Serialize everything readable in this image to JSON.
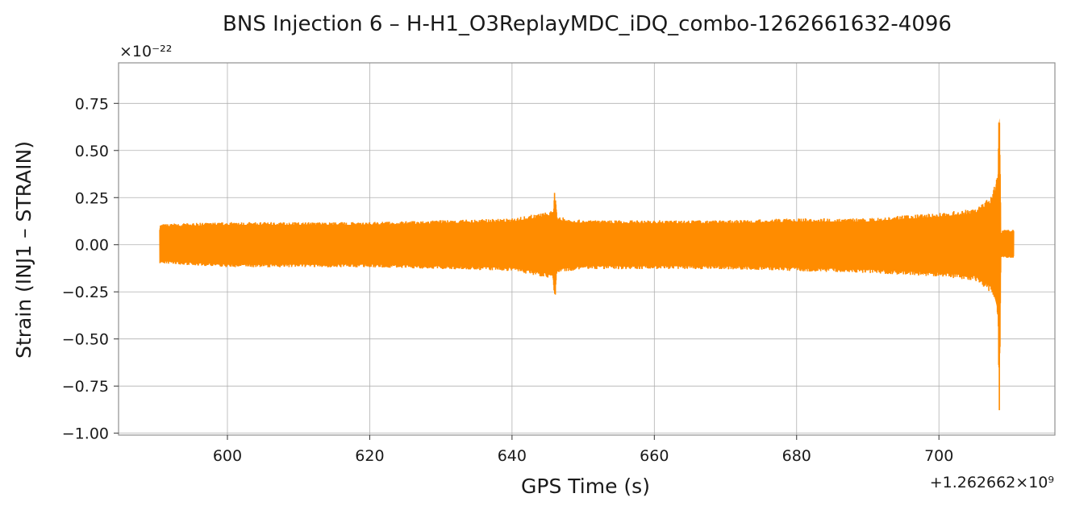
{
  "chart_data": {
    "type": "line",
    "title": "BNS Injection 6 – H-H1_O3ReplayMDC_iDQ_combo-1262661632-4096",
    "xlabel": "GPS Time (s)",
    "ylabel": "Strain (INJ1 – STRAIN)",
    "y_multiplier_text": "×10⁻²²",
    "x_offset_text": "+1.262662×10⁹",
    "x_offset": 1262662000,
    "xlim": [
      584.7,
      716.3
    ],
    "ylim": [
      -1.01,
      0.965
    ],
    "y_unit_scale": 1e-22,
    "xticks": [
      600,
      620,
      640,
      660,
      680,
      700
    ],
    "xtick_labels": [
      "600",
      "620",
      "640",
      "660",
      "680",
      "700"
    ],
    "yticks": [
      -1.0,
      -0.75,
      -0.5,
      -0.25,
      0.0,
      0.25,
      0.5,
      0.75
    ],
    "ytick_labels": [
      "−1.00",
      "−0.75",
      "−0.50",
      "−0.25",
      "0.00",
      "0.25",
      "0.50",
      "0.75"
    ],
    "grid": true,
    "line_color": "#ff8c00",
    "series": [
      {
        "name": "",
        "x": [
          590.5,
          600,
          610,
          620,
          630,
          640,
          645.8,
          646.0,
          646.3,
          650,
          660,
          670,
          680,
          690,
          700,
          705,
          707.5,
          708.3,
          708.5,
          708.7,
          709.0,
          710.5
        ],
        "envelope_upper": [
          0.11,
          0.12,
          0.12,
          0.12,
          0.13,
          0.14,
          0.18,
          0.3,
          0.15,
          0.13,
          0.13,
          0.13,
          0.14,
          0.14,
          0.17,
          0.19,
          0.26,
          0.4,
          0.88,
          0.06,
          0.08,
          0.08
        ],
        "envelope_lower": [
          -0.1,
          -0.12,
          -0.12,
          -0.12,
          -0.13,
          -0.14,
          -0.18,
          -0.32,
          -0.15,
          -0.13,
          -0.13,
          -0.13,
          -0.14,
          -0.15,
          -0.17,
          -0.19,
          -0.26,
          -0.4,
          -0.92,
          -0.06,
          -0.07,
          -0.07
        ]
      }
    ]
  }
}
